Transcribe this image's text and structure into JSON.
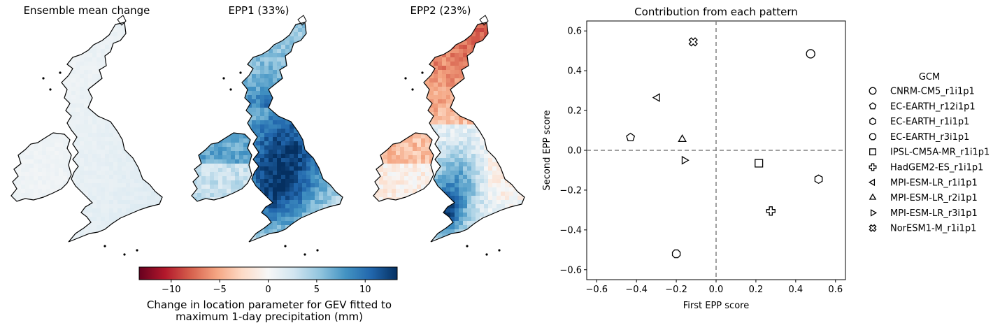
{
  "maps": {
    "titles": [
      "Ensemble mean change",
      "EPP1 (33%)",
      "EPP2 (23%)"
    ]
  },
  "colorbar": {
    "ticks": [
      -10,
      -5,
      0,
      5,
      10
    ],
    "range": [
      -13.3,
      13.3
    ],
    "label_line1": "Change in location parameter for GEV fitted to",
    "label_line2": "maximum 1-day precipitation (mm)",
    "colors": [
      "#67001f",
      "#b2182b",
      "#d6604d",
      "#f4a582",
      "#fddbc7",
      "#f7f7f7",
      "#d1e5f0",
      "#92c5de",
      "#4393c3",
      "#2166ac",
      "#053061"
    ]
  },
  "chart_data": {
    "type": "scatter",
    "title": "Contribution from each pattern",
    "xlabel": "First EPP score",
    "ylabel": "Second EPP score",
    "xlim": [
      -0.65,
      0.65
    ],
    "ylim": [
      -0.65,
      0.65
    ],
    "xticks": [
      -0.6,
      -0.4,
      -0.2,
      0.0,
      0.2,
      0.4,
      0.6
    ],
    "yticks": [
      -0.6,
      -0.4,
      -0.2,
      0.0,
      0.2,
      0.4,
      0.6
    ],
    "xtick_labels": [
      "−0.6",
      "−0.4",
      "−0.2",
      "0.0",
      "0.2",
      "0.4",
      "0.6"
    ],
    "ytick_labels": [
      "−0.6",
      "−0.4",
      "−0.2",
      "0.0",
      "0.2",
      "0.4",
      "0.6"
    ],
    "reference_lines": {
      "x": 0.0,
      "y": 0.0,
      "style": "dashed",
      "color": "#808080"
    },
    "grid": false,
    "legend": {
      "title": "GCM",
      "placement": "right-outside"
    },
    "series": [
      {
        "name": "CNRM-CM5_r1i1p1",
        "marker": "circle",
        "x": 0.475,
        "y": 0.485
      },
      {
        "name": "EC-EARTH_r12i1p1",
        "marker": "pentagon",
        "x": -0.43,
        "y": 0.065
      },
      {
        "name": "EC-EARTH_r1i1p1",
        "marker": "hexagon",
        "x": 0.515,
        "y": -0.145
      },
      {
        "name": "EC-EARTH_r3i1p1",
        "marker": "octagon",
        "x": -0.2,
        "y": -0.52
      },
      {
        "name": "IPSL-CM5A-MR_r1i1p1",
        "marker": "square",
        "x": 0.215,
        "y": -0.065
      },
      {
        "name": "HadGEM2-ES_r1i1p1",
        "marker": "plus",
        "x": 0.275,
        "y": -0.305
      },
      {
        "name": "MPI-ESM-LR_r1i1p1",
        "marker": "triangle-left",
        "x": -0.295,
        "y": 0.265
      },
      {
        "name": "MPI-ESM-LR_r2i1p1",
        "marker": "triangle-up",
        "x": -0.17,
        "y": 0.055
      },
      {
        "name": "MPI-ESM-LR_r3i1p1",
        "marker": "triangle-right",
        "x": -0.16,
        "y": -0.05
      },
      {
        "name": "NorESM1-M_r1i1p1",
        "marker": "x-filled",
        "x": -0.115,
        "y": 0.545
      }
    ]
  }
}
